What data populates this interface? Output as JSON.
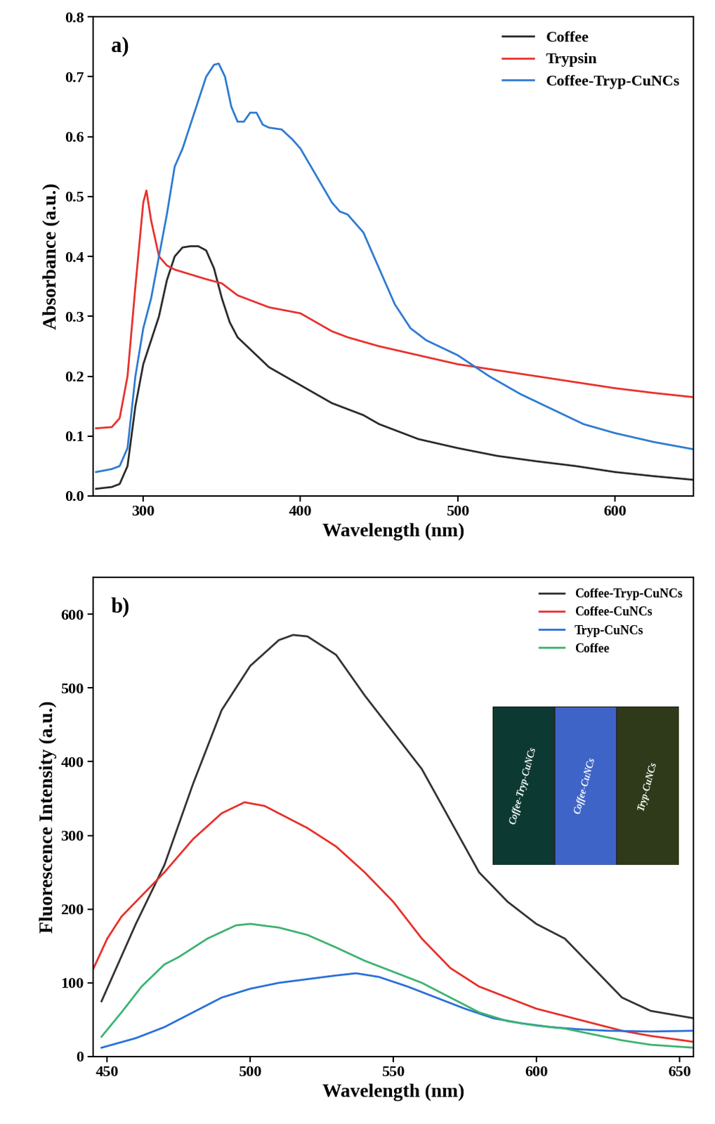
{
  "chart_data": [
    {
      "type": "line",
      "title": "a)",
      "x_label": "Wavelength (nm)",
      "y_label": "Absorbance (a.u.)",
      "xlim": [
        268,
        650
      ],
      "xticks": [
        300,
        400,
        500,
        600
      ],
      "ylim": [
        0,
        0.8
      ],
      "yticks": [
        {
          "value": 0,
          "label": "0.0"
        },
        0.1,
        0.2,
        0.3,
        0.4,
        0.5,
        0.6,
        0.7,
        0.8
      ],
      "legend": "upper right",
      "series": [
        {
          "name": "Coffee",
          "color": "#2b2b2b",
          "x": [
            270,
            280,
            285,
            290,
            295,
            300,
            305,
            310,
            315,
            320,
            325,
            330,
            335,
            340,
            345,
            350,
            355,
            360,
            370,
            380,
            390,
            400,
            410,
            420,
            430,
            440,
            450,
            460,
            475,
            500,
            525,
            550,
            575,
            600,
            625,
            650
          ],
          "values": [
            0.012,
            0.015,
            0.02,
            0.05,
            0.15,
            0.22,
            0.26,
            0.3,
            0.36,
            0.4,
            0.415,
            0.417,
            0.417,
            0.41,
            0.38,
            0.33,
            0.29,
            0.265,
            0.24,
            0.215,
            0.2,
            0.185,
            0.17,
            0.155,
            0.145,
            0.135,
            0.12,
            0.11,
            0.095,
            0.08,
            0.067,
            0.058,
            0.05,
            0.04,
            0.033,
            0.027
          ]
        },
        {
          "name": "Trypsin",
          "color": "#e8322d",
          "x": [
            270,
            280,
            285,
            290,
            295,
            300,
            302,
            305,
            310,
            315,
            320,
            330,
            340,
            350,
            360,
            370,
            380,
            390,
            400,
            410,
            420,
            430,
            450,
            475,
            500,
            525,
            550,
            575,
            600,
            625,
            650
          ],
          "values": [
            0.113,
            0.115,
            0.13,
            0.2,
            0.35,
            0.49,
            0.51,
            0.46,
            0.4,
            0.385,
            0.378,
            0.37,
            0.362,
            0.355,
            0.335,
            0.325,
            0.315,
            0.31,
            0.305,
            0.29,
            0.275,
            0.265,
            0.25,
            0.235,
            0.22,
            0.21,
            0.2,
            0.19,
            0.18,
            0.172,
            0.165
          ]
        },
        {
          "name": "Coffee-Tryp-CuNCs",
          "color": "#2e7bd1",
          "x": [
            270,
            280,
            285,
            290,
            295,
            300,
            305,
            310,
            315,
            320,
            325,
            330,
            335,
            340,
            345,
            348,
            352,
            356,
            360,
            364,
            368,
            372,
            376,
            380,
            388,
            395,
            400,
            410,
            420,
            425,
            430,
            440,
            450,
            460,
            470,
            480,
            500,
            520,
            540,
            560,
            580,
            600,
            625,
            650
          ],
          "values": [
            0.04,
            0.045,
            0.05,
            0.08,
            0.2,
            0.28,
            0.33,
            0.4,
            0.47,
            0.55,
            0.58,
            0.62,
            0.66,
            0.7,
            0.72,
            0.722,
            0.7,
            0.65,
            0.625,
            0.625,
            0.64,
            0.64,
            0.62,
            0.615,
            0.612,
            0.595,
            0.58,
            0.535,
            0.49,
            0.475,
            0.47,
            0.44,
            0.38,
            0.32,
            0.28,
            0.26,
            0.235,
            0.2,
            0.17,
            0.145,
            0.12,
            0.105,
            0.09,
            0.078
          ]
        }
      ]
    },
    {
      "type": "line",
      "title": "b)",
      "x_label": "Wavelength (nm)",
      "y_label": "Fluorescence Intensity (a.u.)",
      "xlim": [
        445,
        655
      ],
      "xticks": [
        450,
        500,
        550,
        600,
        650
      ],
      "ylim": [
        0,
        650
      ],
      "yticks": [
        0,
        100,
        200,
        300,
        400,
        500,
        600
      ],
      "legend": "upper right",
      "annotations": [
        "Coffee-Tryp-CuNCs",
        "Coffee-CuNCs",
        "Tryp-CuNCs"
      ],
      "series": [
        {
          "name": "Coffee-Tryp-CuNCs",
          "color": "#333333",
          "x": [
            448,
            460,
            470,
            480,
            490,
            500,
            510,
            515,
            520,
            530,
            540,
            550,
            560,
            570,
            580,
            590,
            600,
            610,
            620,
            630,
            640,
            655
          ],
          "values": [
            75,
            180,
            260,
            370,
            470,
            530,
            565,
            572,
            570,
            545,
            490,
            440,
            390,
            320,
            250,
            210,
            180,
            160,
            120,
            80,
            62,
            52
          ]
        },
        {
          "name": "Coffee-CuNCs",
          "color": "#e8302a",
          "x": [
            445,
            450,
            455,
            460,
            470,
            480,
            490,
            498,
            505,
            520,
            530,
            540,
            550,
            560,
            570,
            580,
            590,
            600,
            610,
            620,
            630,
            640,
            655
          ],
          "values": [
            118,
            160,
            190,
            210,
            250,
            295,
            330,
            345,
            340,
            310,
            285,
            250,
            210,
            160,
            120,
            95,
            80,
            65,
            55,
            45,
            35,
            28,
            20
          ]
        },
        {
          "name": "Tryp-CuNCs",
          "color": "#2a6fdb",
          "x": [
            448,
            460,
            470,
            480,
            490,
            500,
            510,
            520,
            530,
            537,
            545,
            555,
            565,
            575,
            585,
            595,
            605,
            615,
            625,
            640,
            655
          ],
          "values": [
            12,
            25,
            40,
            60,
            80,
            92,
            100,
            105,
            110,
            113,
            108,
            95,
            80,
            65,
            52,
            45,
            40,
            37,
            35,
            34,
            35
          ]
        },
        {
          "name": "Coffee",
          "color": "#3cb371",
          "x": [
            448,
            455,
            462,
            470,
            475,
            485,
            495,
            500,
            510,
            520,
            530,
            540,
            550,
            560,
            570,
            580,
            590,
            600,
            610,
            620,
            630,
            640,
            655
          ],
          "values": [
            27,
            60,
            95,
            125,
            135,
            160,
            178,
            180,
            175,
            165,
            148,
            130,
            115,
            100,
            80,
            60,
            48,
            42,
            38,
            30,
            22,
            16,
            12
          ]
        }
      ]
    }
  ]
}
